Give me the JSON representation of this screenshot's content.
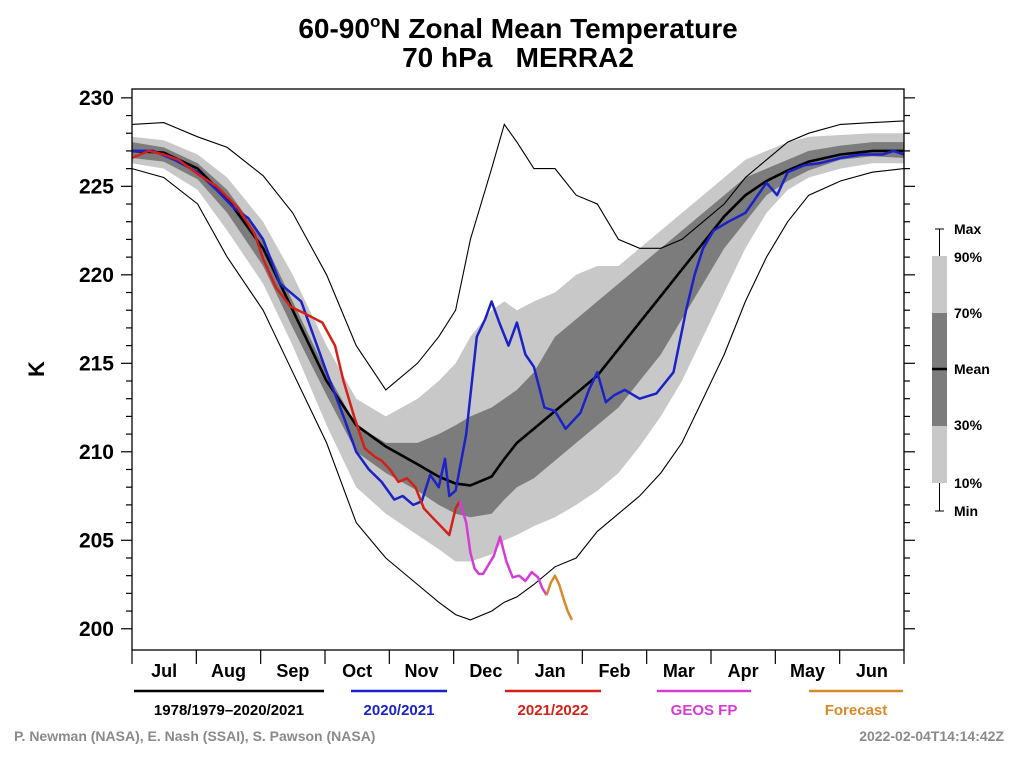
{
  "chart_data": {
    "type": "line",
    "title_parts": [
      "60-90",
      "o",
      "N Zonal Mean Temperature"
    ],
    "subtitle": "70 hPa   MERRA2",
    "ylabel": "K",
    "ylim": [
      198.8,
      230.5
    ],
    "xlim": [
      0,
      365
    ],
    "yticks": [
      "200",
      "205",
      "210",
      "215",
      "220",
      "225",
      "230"
    ],
    "months": [
      "Jul",
      "Aug",
      "Sep",
      "Oct",
      "Nov",
      "Dec",
      "Jan",
      "Feb",
      "Mar",
      "Apr",
      "May",
      "Jun"
    ],
    "climatology": {
      "x": [
        0,
        15,
        31,
        45,
        62,
        76,
        92,
        106,
        120,
        135,
        145,
        153,
        160,
        170,
        176,
        182,
        190,
        200,
        210,
        220,
        230,
        240,
        250,
        260,
        270,
        280,
        290,
        300,
        310,
        320,
        335,
        350,
        365
      ],
      "max": [
        228.5,
        228.6,
        227.8,
        227.2,
        225.6,
        223.5,
        220.0,
        216.0,
        213.5,
        215.0,
        216.5,
        218.0,
        222.0,
        226.0,
        228.5,
        227.5,
        226.0,
        226.0,
        224.5,
        224.0,
        222.0,
        221.5,
        221.5,
        222.0,
        223.0,
        224.0,
        225.5,
        226.5,
        227.5,
        228.0,
        228.5,
        228.6,
        228.7
      ],
      "p90": [
        227.8,
        227.6,
        226.8,
        225.5,
        223.0,
        220.0,
        216.0,
        213.0,
        212.0,
        213.0,
        214.0,
        215.0,
        216.5,
        218.0,
        218.5,
        218.0,
        218.5,
        219.0,
        220.0,
        220.5,
        220.5,
        221.5,
        222.5,
        223.5,
        224.5,
        225.5,
        226.5,
        227.0,
        227.5,
        227.8,
        227.9,
        228.0,
        228.0
      ],
      "p70": [
        227.5,
        227.2,
        226.3,
        224.8,
        222.0,
        218.5,
        214.5,
        211.5,
        210.5,
        210.5,
        211.0,
        211.5,
        212.0,
        212.5,
        213.0,
        213.5,
        214.5,
        216.5,
        217.5,
        218.5,
        219.5,
        220.5,
        221.5,
        222.5,
        223.5,
        224.5,
        225.5,
        226.0,
        226.5,
        227.0,
        227.3,
        227.5,
        227.5
      ],
      "mean": [
        227.0,
        226.9,
        226.0,
        224.3,
        221.5,
        218.0,
        214.0,
        211.5,
        210.3,
        209.3,
        208.6,
        208.2,
        208.1,
        208.6,
        209.6,
        210.5,
        211.3,
        212.3,
        213.3,
        214.3,
        215.8,
        217.3,
        218.8,
        220.3,
        221.8,
        223.3,
        224.5,
        225.3,
        225.9,
        226.4,
        226.8,
        227.0,
        227.0
      ],
      "p30": [
        226.6,
        226.4,
        225.4,
        223.5,
        220.5,
        217.0,
        213.2,
        210.0,
        208.8,
        207.8,
        207.0,
        206.5,
        206.3,
        206.5,
        207.3,
        208.0,
        208.5,
        209.5,
        210.5,
        211.5,
        212.5,
        214.0,
        215.5,
        217.5,
        219.5,
        221.5,
        223.0,
        224.5,
        225.3,
        225.9,
        226.5,
        226.7,
        226.6
      ],
      "p10": [
        226.3,
        226.0,
        224.8,
        222.5,
        219.5,
        216.0,
        211.5,
        208.0,
        206.5,
        205.3,
        204.5,
        203.8,
        203.8,
        204.2,
        205.0,
        205.3,
        205.8,
        206.3,
        207.0,
        207.8,
        208.8,
        210.3,
        212.0,
        214.0,
        216.5,
        219.0,
        221.5,
        223.5,
        224.8,
        225.5,
        226.0,
        226.3,
        226.3
      ],
      "min": [
        226.0,
        225.5,
        224.0,
        221.0,
        218.0,
        214.5,
        210.5,
        206.0,
        204.0,
        202.5,
        201.5,
        200.8,
        200.5,
        201.0,
        201.5,
        201.8,
        202.5,
        203.5,
        204.0,
        205.5,
        206.5,
        207.5,
        208.8,
        210.5,
        213.0,
        215.5,
        218.5,
        221.0,
        223.0,
        224.5,
        225.3,
        225.8,
        226.0
      ]
    },
    "series": [
      {
        "name": "2020/2021",
        "color": "#1a22c8",
        "x": [
          0,
          10,
          20,
          31,
          40,
          48,
          55,
          62,
          70,
          80,
          92,
          100,
          106,
          112,
          118,
          124,
          128,
          133,
          137,
          141,
          145,
          148,
          150,
          153,
          158,
          163,
          167,
          170,
          174,
          178,
          182,
          186,
          190,
          195,
          200,
          205,
          212,
          216,
          220,
          224,
          228,
          233,
          240,
          248,
          256,
          262,
          266,
          270,
          275,
          282,
          290,
          300,
          305,
          310,
          318,
          325,
          335,
          345,
          355,
          360,
          365
        ],
        "y": [
          227.0,
          227.0,
          226.5,
          225.8,
          224.8,
          223.8,
          223.2,
          222.0,
          219.5,
          218.5,
          214.5,
          212.0,
          210.0,
          209.0,
          208.3,
          207.3,
          207.5,
          207.0,
          207.2,
          208.7,
          208.0,
          209.6,
          207.5,
          207.8,
          211.0,
          216.5,
          217.5,
          218.5,
          217.2,
          216.0,
          217.3,
          215.5,
          214.8,
          212.5,
          212.3,
          211.3,
          212.2,
          213.5,
          214.5,
          212.8,
          213.2,
          213.5,
          213.0,
          213.3,
          214.5,
          218.0,
          220.0,
          221.5,
          222.5,
          223.0,
          223.5,
          225.2,
          224.5,
          225.8,
          226.2,
          226.3,
          226.6,
          226.8,
          226.8,
          227.0,
          226.8
        ]
      },
      {
        "name": "2021/2022",
        "color": "#d42018",
        "x": [
          0,
          8,
          15,
          22,
          31,
          40,
          50,
          58,
          62,
          68,
          75,
          82,
          90,
          96,
          100,
          105,
          110,
          115,
          118,
          122,
          126,
          130,
          134,
          138,
          142,
          146,
          150,
          153,
          155
        ],
        "y": [
          226.6,
          227.0,
          226.8,
          226.5,
          225.7,
          225.0,
          223.8,
          222.3,
          220.9,
          219.3,
          218.2,
          217.8,
          217.3,
          216.0,
          214.0,
          212.0,
          210.2,
          209.7,
          209.5,
          209.0,
          208.3,
          208.5,
          208.0,
          206.8,
          206.3,
          205.8,
          205.3,
          206.8,
          207.2
        ]
      },
      {
        "name": "GEOS FP",
        "color": "#d63bd6",
        "x": [
          155,
          158,
          160,
          162,
          164,
          166,
          168,
          171,
          174,
          177,
          180,
          183,
          186,
          189,
          192,
          194,
          196
        ],
        "y": [
          207.2,
          206.0,
          204.3,
          203.4,
          203.1,
          203.1,
          203.5,
          204.1,
          205.2,
          203.8,
          202.9,
          203.0,
          202.7,
          203.2,
          202.9,
          202.3,
          201.9
        ]
      },
      {
        "name": "Forecast",
        "color": "#d68a2a",
        "x": [
          196,
          198,
          200,
          202,
          204,
          206,
          208
        ],
        "y": [
          201.9,
          202.6,
          203.0,
          202.5,
          201.7,
          201.0,
          200.5
        ]
      }
    ]
  },
  "legend": {
    "items": [
      {
        "label": "1978/1979–2020/2021",
        "color": "#000000"
      },
      {
        "label": "2020/2021",
        "color": "#1a22c8"
      },
      {
        "label": "2021/2022",
        "color": "#d42018"
      },
      {
        "label": "GEOS FP",
        "color": "#d63bd6"
      },
      {
        "label": "Forecast",
        "color": "#d68a2a"
      }
    ]
  },
  "key": {
    "labels": [
      "Max",
      "90%",
      "70%",
      "Mean",
      "30%",
      "10%",
      "Min"
    ]
  },
  "colors": {
    "band_outer": "#c8c8c8",
    "band_mid": "#a6a6a6",
    "band_inner": "#7c7c7c",
    "credit": "#8a8a8a"
  },
  "footer": {
    "credit": "P. Newman (NASA), E. Nash (SSAI), S. Pawson (NASA)",
    "timestamp": "2022-02-04T14:14:42Z"
  }
}
